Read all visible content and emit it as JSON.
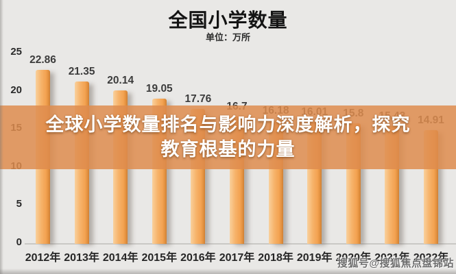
{
  "header": {
    "title": "全国小学数量",
    "subtitle": "单位：万所"
  },
  "overlay": {
    "line1": "全球小学数量排名与影响力深度解析，探究",
    "line2": "教育根基的力量",
    "banner_color_rgba": "rgba(222,140,77,0.85)"
  },
  "watermark": {
    "text": "搜狐号@搜狐焦点盘锦站"
  },
  "chart_data": {
    "type": "bar",
    "title": "全国小学数量",
    "unit_label": "单位：万所",
    "categories": [
      "2012年",
      "2013年",
      "2014年",
      "2015年",
      "2016年",
      "2017年",
      "2018年",
      "2019年",
      "2020年",
      "2021年",
      "2022年"
    ],
    "values": [
      22.86,
      21.35,
      20.14,
      19.05,
      17.76,
      16.7,
      16.18,
      16.01,
      15.8,
      15.43,
      14.91
    ],
    "ylim": [
      0,
      25
    ],
    "yticks": [
      0,
      5,
      10,
      15,
      20,
      25
    ],
    "bar_color": "#F3A251",
    "grid": false,
    "legend": false,
    "value_labels_shown": true
  }
}
